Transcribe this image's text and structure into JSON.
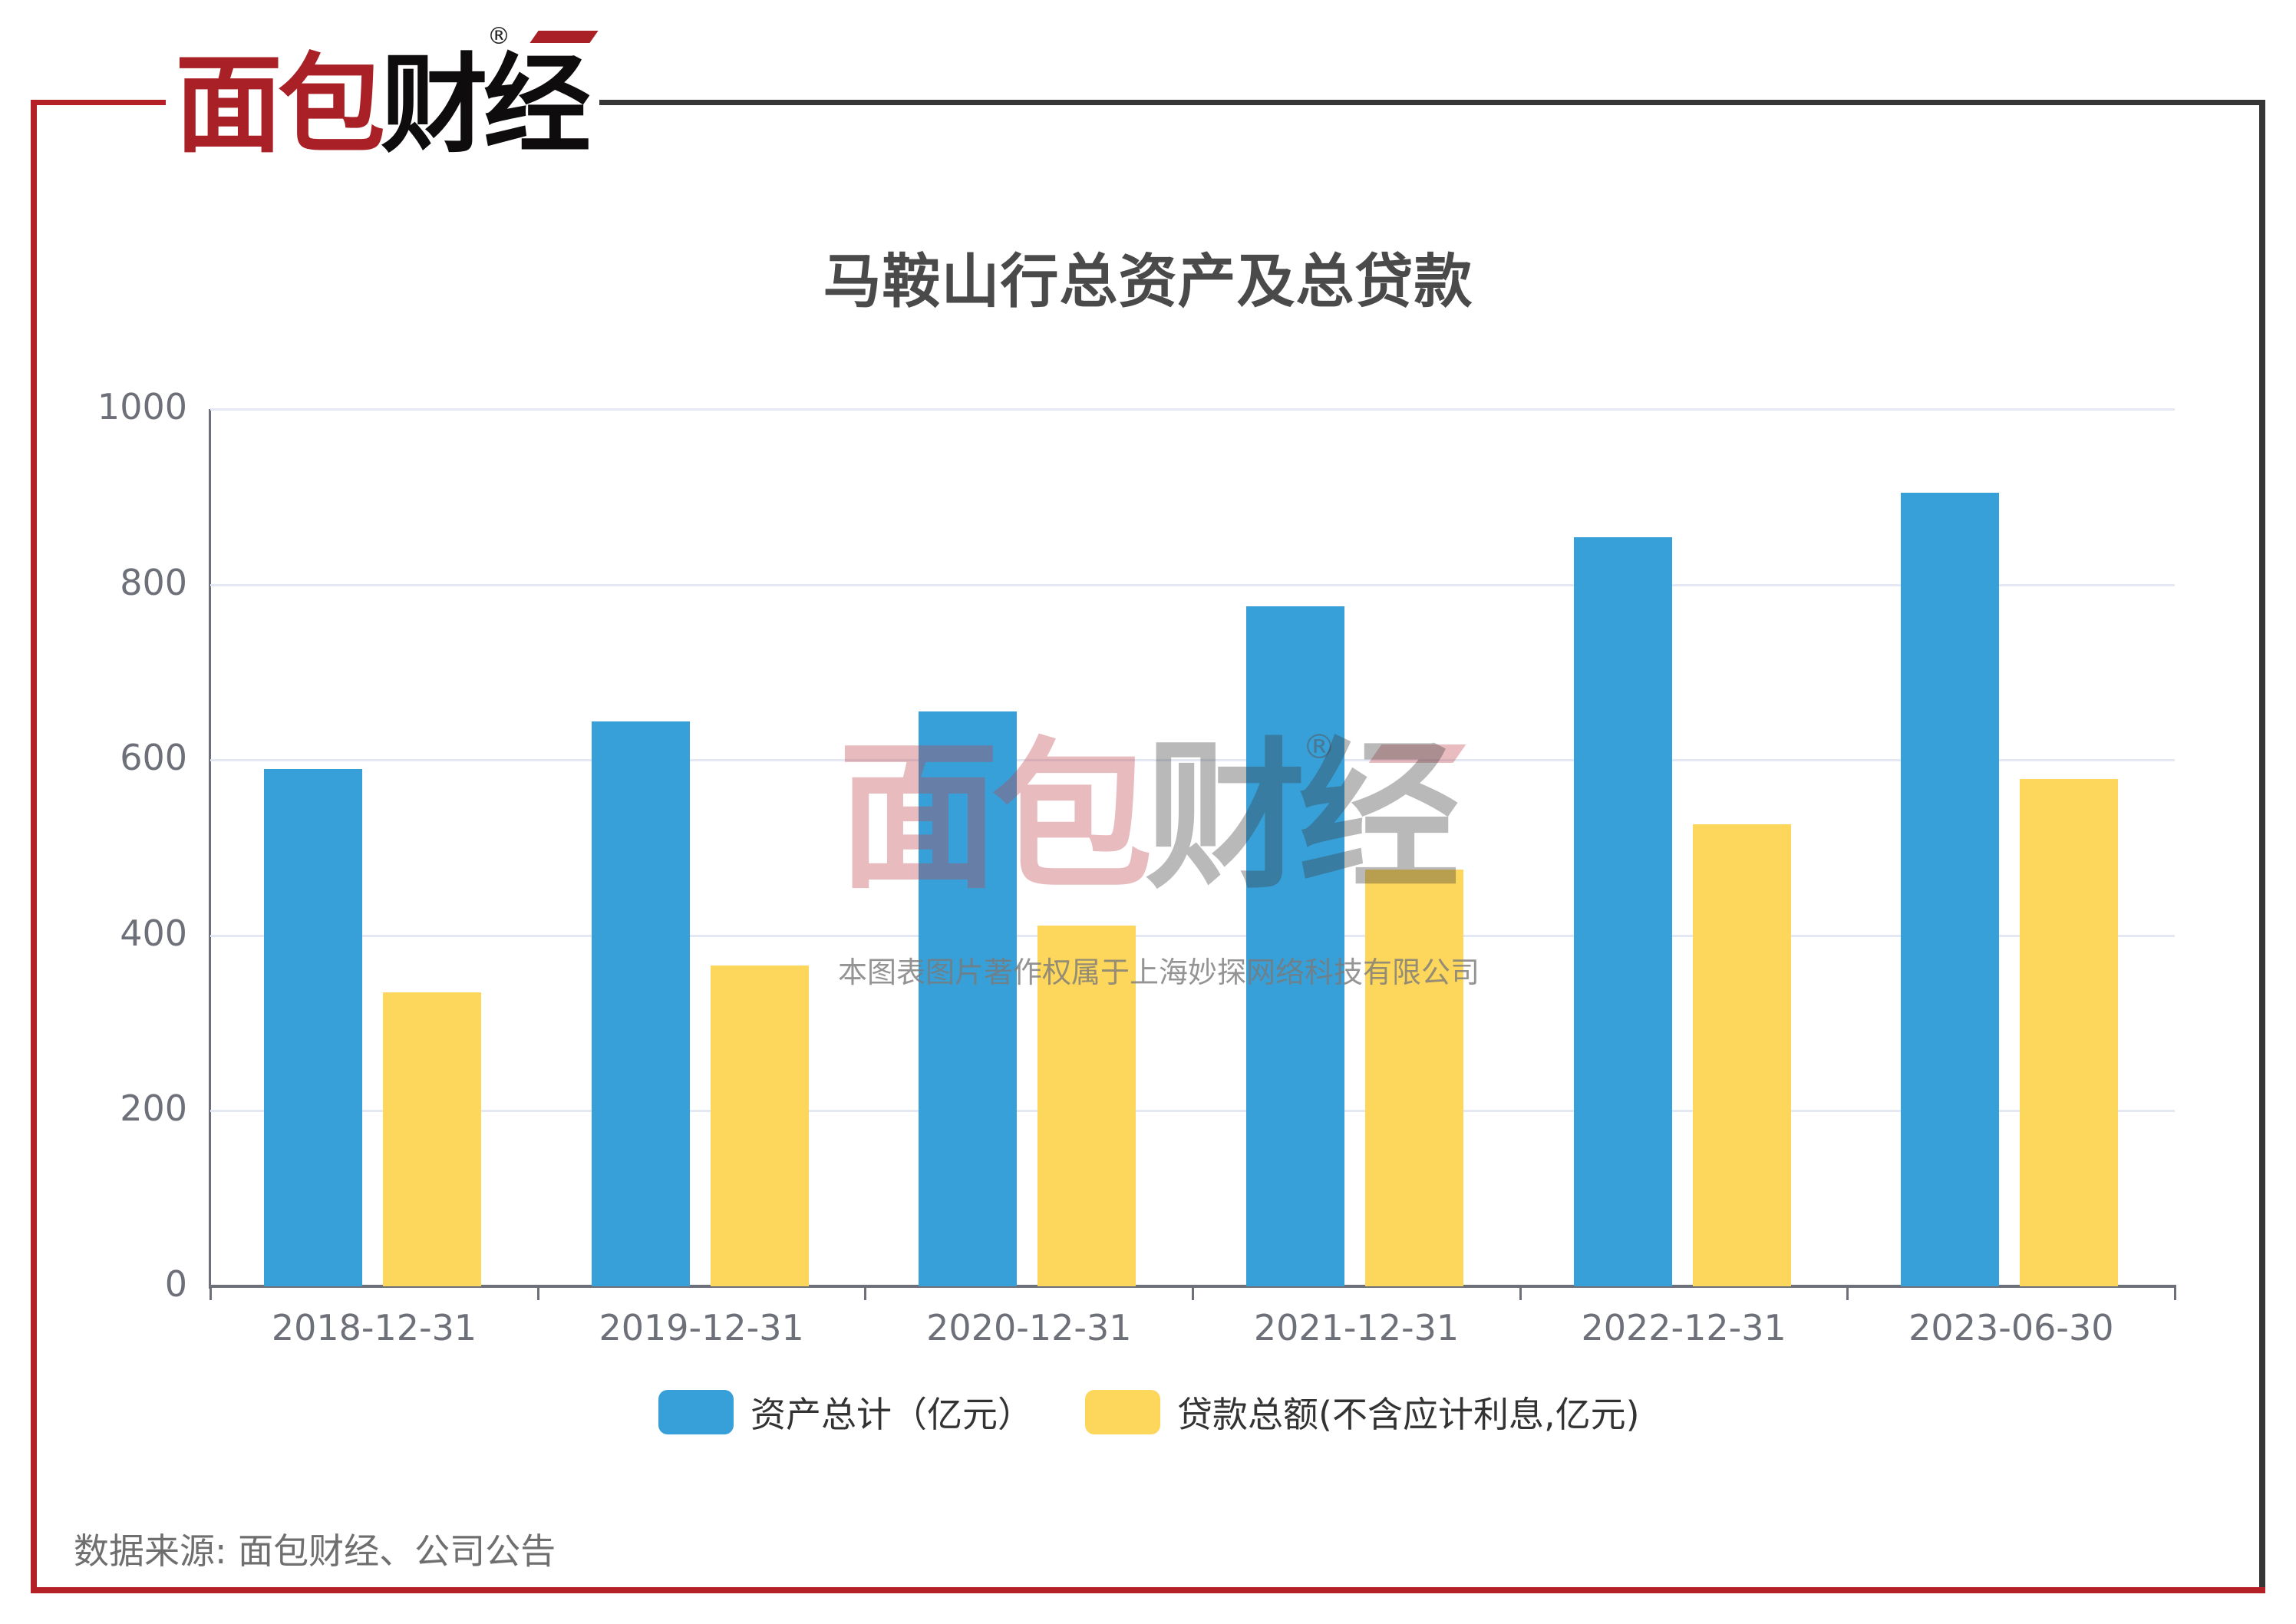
{
  "brand": {
    "logo_red": "面包",
    "logo_dark": "财经",
    "registered_mark": "®",
    "colors": {
      "red": "#a92126",
      "dark": "#0e0c0c",
      "frame_red": "#b51f26",
      "frame_dark": "#363636"
    }
  },
  "watermark": {
    "logo_red": "面包",
    "logo_dark": "财经",
    "registered_mark": "®",
    "caption": "本图表图片著作权属于上海妙探网络科技有限公司"
  },
  "footer": {
    "source": "数据来源: 面包财经、公司公告"
  },
  "chart_data": {
    "type": "bar",
    "title": "马鞍山行总资产及总贷款",
    "xlabel": "",
    "ylabel": "",
    "categories": [
      "2018-12-31",
      "2019-12-31",
      "2020-12-31",
      "2021-12-31",
      "2022-12-31",
      "2023-06-30"
    ],
    "series": [
      {
        "name": "资产总计（亿元）",
        "color": "#38a0d9",
        "values": [
          590,
          644,
          655,
          775,
          854,
          905
        ]
      },
      {
        "name": "贷款总额(不含应计利息,亿元)",
        "color": "#fdd65c",
        "values": [
          335,
          366,
          411,
          475,
          527,
          578
        ]
      }
    ],
    "ylim": [
      0,
      1000
    ],
    "yticks": [
      0,
      200,
      400,
      600,
      800,
      1000
    ],
    "grid": true,
    "legend_position": "bottom"
  }
}
